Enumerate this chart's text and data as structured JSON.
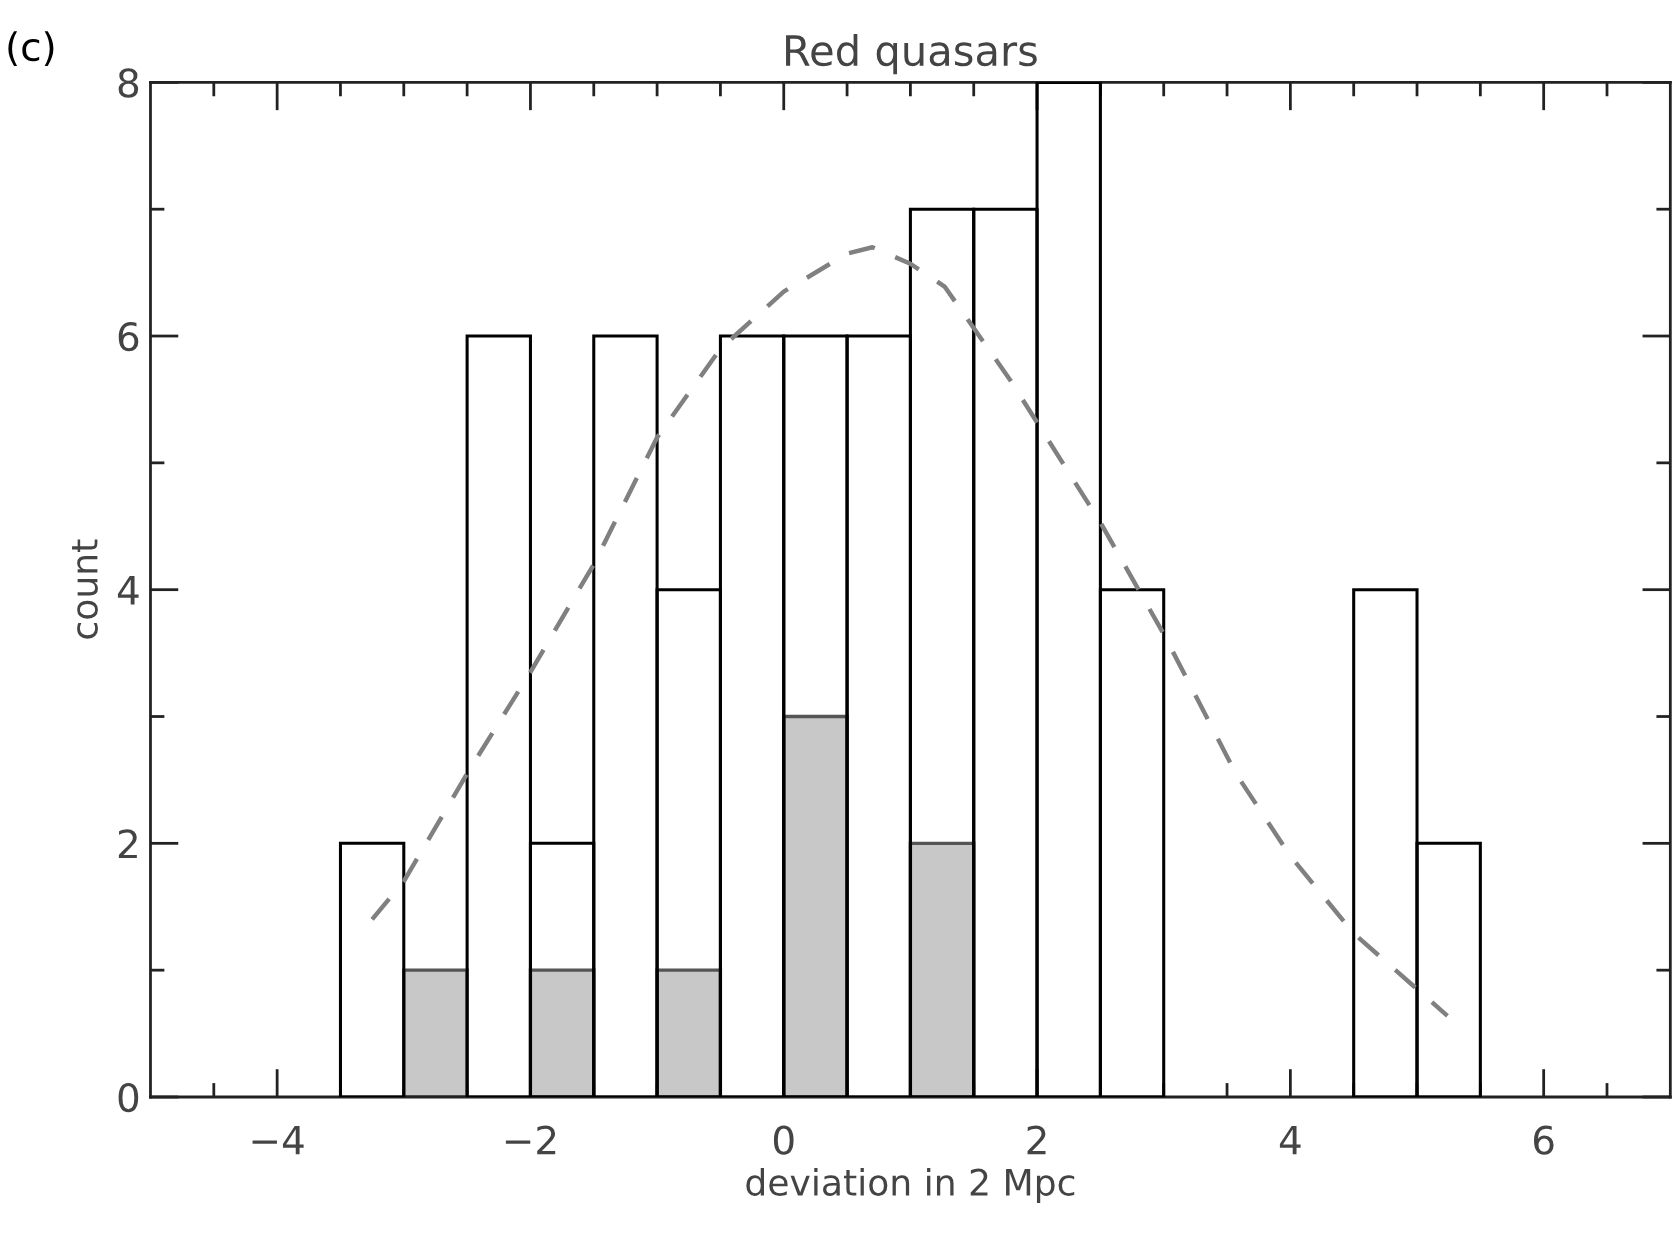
{
  "chart_data": {
    "type": "histogram",
    "title": "Red quasars",
    "xlabel": "deviation in 2 Mpc",
    "ylabel": "count",
    "annotations": [
      "(c)"
    ],
    "bins": [
      -3.5,
      -3.0,
      -2.5,
      -2.0,
      -1.5,
      -1.0,
      -0.5,
      0.0,
      0.5,
      1.0,
      1.5,
      2.0,
      2.5,
      3.0,
      3.5,
      4.0,
      4.5,
      5.0,
      5.5
    ],
    "series": [
      {
        "color": "#000000",
        "values": [
          2,
          0,
          6,
          2,
          6,
          4,
          6,
          6,
          6,
          7,
          7,
          8,
          4,
          0,
          0,
          0,
          4,
          2
        ]
      },
      {
        "color": "#c8c8c8",
        "values": [
          0,
          1,
          0,
          1,
          0,
          1,
          0,
          3,
          0,
          2,
          0,
          0,
          0,
          0,
          0,
          0,
          0,
          0
        ]
      },
      {
        "type": "line",
        "color": "#808080",
        "line_style": "dashed",
        "x": [
          -3.25,
          -3.0,
          -2.5,
          -2.0,
          -1.5,
          -1.0,
          -0.5,
          0.0,
          0.5,
          0.7,
          1.0,
          1.27,
          1.79,
          2.5,
          3.0,
          3.57,
          4.0,
          4.5,
          5.24
        ],
        "values": [
          1.4,
          1.7,
          2.55,
          3.35,
          4.2,
          5.2,
          5.9,
          6.35,
          6.65,
          6.7,
          6.57,
          6.39,
          5.65,
          4.53,
          3.65,
          2.55,
          1.9,
          1.29,
          0.64
        ]
      }
    ],
    "xlim": [
      -5,
      7
    ],
    "xticks": [
      {
        "value": -4.5,
        "label": null
      },
      {
        "value": -4,
        "label": "−4"
      },
      {
        "value": -3.5,
        "label": null
      },
      {
        "value": -3,
        "label": null
      },
      {
        "value": -2.5,
        "label": null
      },
      {
        "value": -2,
        "label": "−2"
      },
      {
        "value": -1.5,
        "label": null
      },
      {
        "value": -1,
        "label": null
      },
      {
        "value": -0.5,
        "label": null
      },
      0,
      {
        "value": 0.5,
        "label": null
      },
      {
        "value": 1,
        "label": null
      },
      {
        "value": 1.5,
        "label": null
      },
      2,
      {
        "value": 2.5,
        "label": null
      },
      {
        "value": 3,
        "label": null
      },
      {
        "value": 3.5,
        "label": null
      },
      4,
      {
        "value": 4.5,
        "label": null
      },
      {
        "value": 5,
        "label": null
      },
      {
        "value": 5.5,
        "label": null
      },
      6,
      {
        "value": 6.5,
        "label": null
      }
    ],
    "ylim": [
      0,
      8
    ],
    "yticks": [
      0,
      {
        "value": 1,
        "label": null
      },
      2,
      {
        "value": 3,
        "label": null
      },
      4,
      {
        "value": 5,
        "label": null
      },
      6,
      {
        "value": 7,
        "label": null
      },
      8
    ],
    "grid": false,
    "legend": false
  }
}
